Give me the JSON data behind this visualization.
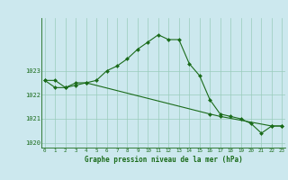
{
  "xlabel": "Graphe pression niveau de la mer (hPa)",
  "background_color": "#cce8ee",
  "grid_color": "#99ccbb",
  "line_color": "#1a6b1a",
  "marker_color": "#1a6b1a",
  "hours": [
    0,
    1,
    2,
    3,
    4,
    5,
    6,
    7,
    8,
    9,
    10,
    11,
    12,
    13,
    14,
    15,
    16,
    17,
    18,
    19,
    20,
    21,
    22,
    23
  ],
  "pressure_line1": [
    1022.6,
    1022.6,
    1022.3,
    1022.5,
    1022.5,
    1022.6,
    1023.0,
    1023.2,
    1023.5,
    1023.9,
    1024.2,
    1024.5,
    1024.3,
    1024.3,
    1023.3,
    1022.8,
    1021.8,
    1021.2,
    1021.1,
    1021.0,
    1020.8,
    1020.4,
    1020.7,
    1020.7
  ],
  "line2_hours": [
    0,
    1,
    2,
    3,
    4,
    16,
    17,
    22,
    23
  ],
  "line2_vals": [
    1022.6,
    1022.3,
    1022.3,
    1022.4,
    1022.5,
    1021.2,
    1021.1,
    1020.7,
    1020.7
  ],
  "ylim": [
    1019.8,
    1025.2
  ],
  "yticks": [
    1020,
    1021,
    1022,
    1023
  ],
  "xlim": [
    -0.3,
    23.3
  ],
  "xticks": [
    0,
    1,
    2,
    3,
    4,
    5,
    6,
    7,
    8,
    9,
    10,
    11,
    12,
    13,
    14,
    15,
    16,
    17,
    18,
    19,
    20,
    21,
    22,
    23
  ]
}
